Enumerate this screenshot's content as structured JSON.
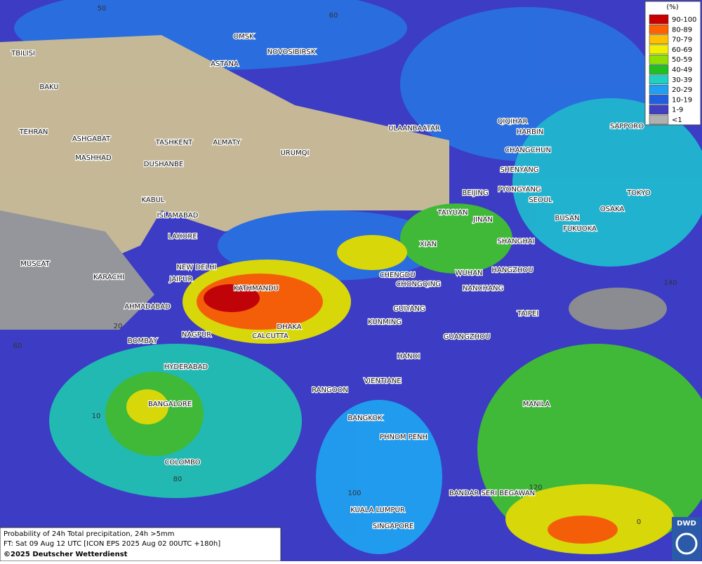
{
  "map": {
    "cities": [
      "TBILISI",
      "BAKU",
      "OMSK",
      "ASTANA",
      "NOVOSIBIRSK",
      "TEHRAN",
      "ASHGABAT",
      "MASHHAD",
      "TASHKENT",
      "ALMATY",
      "URUMQI",
      "DUSHANBE",
      "ULAANBAATAR",
      "QIQIHAR",
      "HARBIN",
      "CHANGCHUN",
      "SHENYANG",
      "SAPPORO",
      "BEIJING",
      "PYONGYANG",
      "SEOUL",
      "TOKYO",
      "OSAKA",
      "BUSAN",
      "FUKUOKA",
      "KABUL",
      "ISLAMABAD",
      "TAIYUAN",
      "JINAN",
      "LAHORE",
      "XIAN",
      "SHANGHAI",
      "MUSCAT",
      "NEW DELHI",
      "WUHAN",
      "HANGZHOU",
      "KARACHI",
      "JAIPUR",
      "CHENGDU",
      "CHONGQING",
      "NANCHANG",
      "KATHMANDU",
      "AHMADABAD",
      "GUIYANG",
      "TAIPEI",
      "DHAKA",
      "KUNMING",
      "NAGPUR",
      "CALCUTTA",
      "GUANGZHOU",
      "BOMBAY",
      "HANOI",
      "HYDERABAD",
      "VIENTIANE",
      "RANGOON",
      "MANILA",
      "BANGALORE",
      "BANGKOK",
      "PHNOM PENH",
      "COLOMBO",
      "BANDAR SERI BEGAWAN",
      "KUALA LUMPUR",
      "SINGAPORE"
    ],
    "graticule_labels": [
      "50",
      "60",
      "140",
      "20",
      "60",
      "10",
      "80",
      "100",
      "120",
      "0"
    ]
  },
  "legend": {
    "title": "(%)",
    "items": [
      {
        "label": "90-100",
        "color": "#c80000"
      },
      {
        "label": "80-89",
        "color": "#ff6000"
      },
      {
        "label": "70-79",
        "color": "#ffc000"
      },
      {
        "label": "60-69",
        "color": "#f0f000"
      },
      {
        "label": "50-59",
        "color": "#90e000"
      },
      {
        "label": "40-49",
        "color": "#20c020"
      },
      {
        "label": "30-39",
        "color": "#20d0c0"
      },
      {
        "label": "20-29",
        "color": "#20a0f0"
      },
      {
        "label": "10-19",
        "color": "#2060e0"
      },
      {
        "label": "1-9",
        "color": "#4040c0"
      },
      {
        "label": "<1",
        "color": "#b0b0b0"
      }
    ]
  },
  "footer": {
    "line1": "Probability of 24h Total precipitation, 24h >5mm",
    "line2": "FT: Sat 09 Aug 12 UTC [ICON EPS 2025 Aug 02 00UTC +180h]",
    "line3": "©2025 Deutscher Wetterdienst"
  },
  "logo": "DWD"
}
